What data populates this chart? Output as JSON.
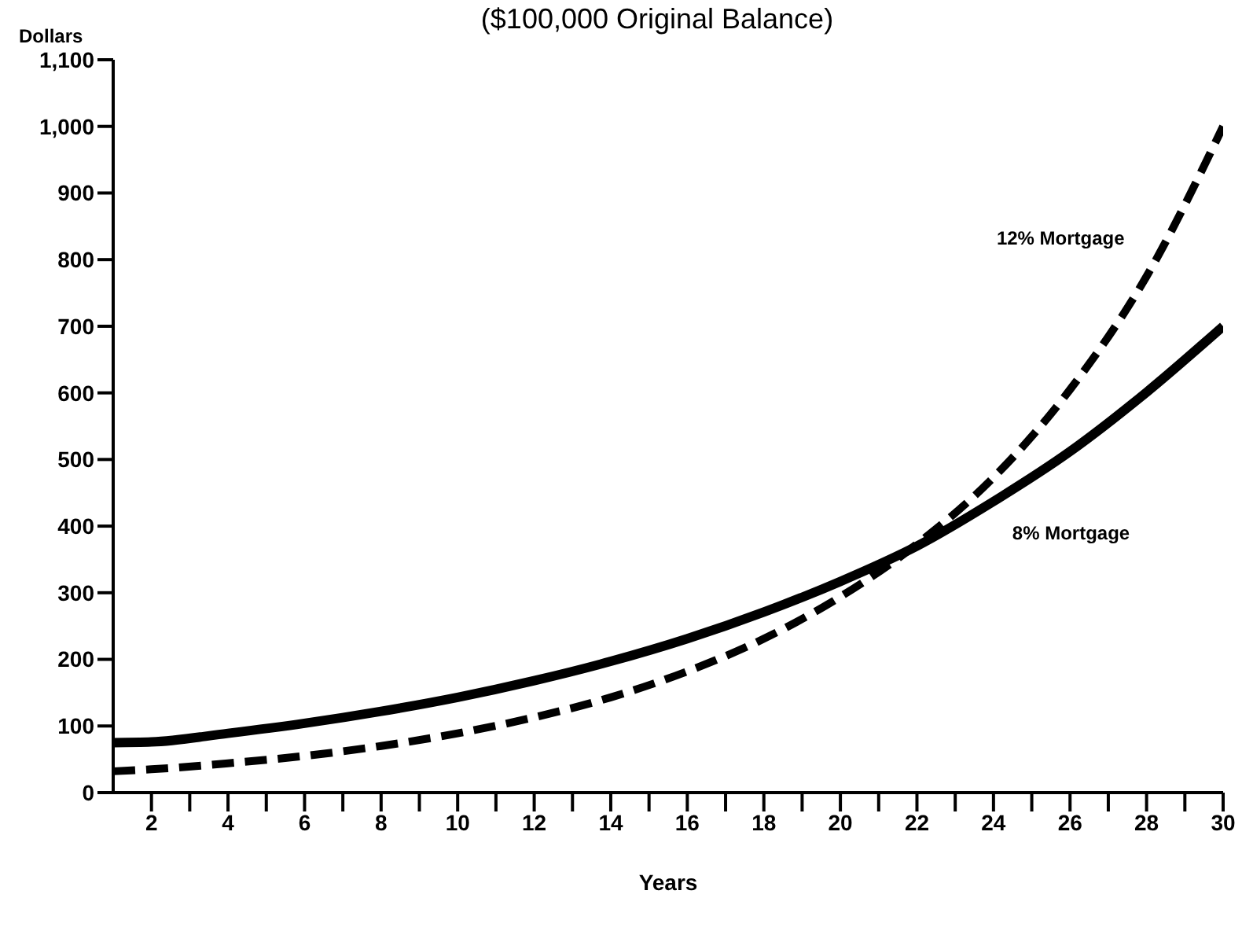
{
  "chart_data": {
    "type": "line",
    "title": "($100,000 Original Balance)",
    "xlabel": "Years",
    "ylabel": "Dollars",
    "x": [
      1,
      2,
      4,
      6,
      8,
      10,
      12,
      14,
      16,
      18,
      20,
      22,
      24,
      26,
      28,
      30
    ],
    "series": [
      {
        "name": "8% Mortgage",
        "color": "#000000",
        "line_style": "solid",
        "values": [
          75,
          76,
          89,
          104,
          122,
          143,
          168,
          197,
          231,
          271,
          317,
          370,
          437,
          512,
          601,
          700
        ]
      },
      {
        "name": "12% Mortgage",
        "color": "#000000",
        "line_style": "dashed",
        "values": [
          32,
          35,
          44,
          55,
          70,
          89,
          113,
          143,
          182,
          231,
          294,
          373,
          473,
          605,
          775,
          1000
        ]
      }
    ],
    "xlim": [
      1,
      30
    ],
    "xticks": [
      2,
      {
        "value": 3,
        "label": null
      },
      4,
      {
        "value": 5,
        "label": null
      },
      6,
      {
        "value": 7,
        "label": null
      },
      8,
      {
        "value": 9,
        "label": null
      },
      10,
      {
        "value": 11,
        "label": null
      },
      12,
      {
        "value": 13,
        "label": null
      },
      14,
      {
        "value": 15,
        "label": null
      },
      16,
      {
        "value": 17,
        "label": null
      },
      18,
      {
        "value": 19,
        "label": null
      },
      20,
      {
        "value": 21,
        "label": null
      },
      22,
      {
        "value": 23,
        "label": null
      },
      24,
      {
        "value": 25,
        "label": null
      },
      26,
      {
        "value": 27,
        "label": null
      },
      28,
      {
        "value": 29,
        "label": null
      },
      30
    ],
    "ylim": [
      0,
      1100
    ],
    "yticks": [
      0,
      100,
      200,
      300,
      400,
      500,
      600,
      700,
      800,
      900,
      {
        "value": 1000,
        "label": "1,000"
      },
      {
        "value": 1100,
        "label": "1,100"
      }
    ],
    "grid": false,
    "legend": false,
    "marker": "none"
  }
}
